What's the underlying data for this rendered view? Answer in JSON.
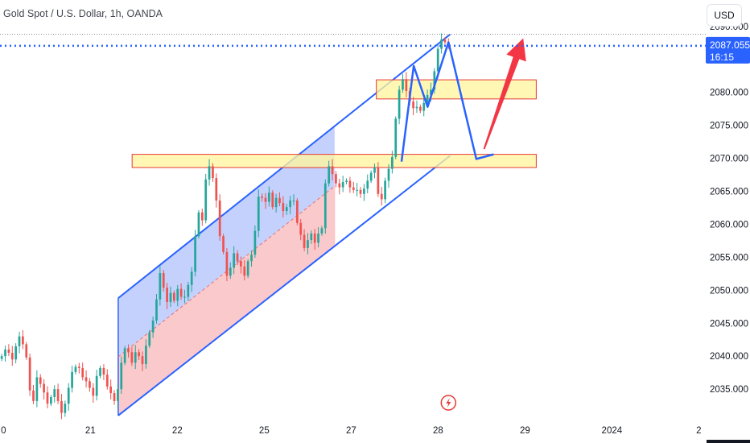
{
  "title": "Gold Spot / U.S. Dollar, 1h, OANDA",
  "currency": "USD",
  "price_tag": {
    "price": "2087.055",
    "countdown": "16:15"
  },
  "colors": {
    "up": "#26a69a",
    "down": "#ef5350",
    "channel_line": "#2962ff",
    "channel_upper_fill": "#b8c9fb",
    "channel_lower_fill": "#f9c3c6",
    "zone_fill": "#fff59d",
    "zone_border": "#e53935",
    "arrow_up": "#f23645",
    "price_tag_bg": "#2962ff",
    "event_icon": "#e53935"
  },
  "chart_data": {
    "type": "candlestick",
    "title": "Gold Spot / U.S. Dollar, 1h, OANDA",
    "y_ticks": [
      "2090.000",
      "2085.000",
      "2080.000",
      "2075.000",
      "2070.000",
      "2065.000",
      "2060.000",
      "2055.000",
      "2050.000",
      "2045.000",
      "2040.000",
      "2035.000"
    ],
    "y_tick_values": [
      2090,
      2085,
      2080,
      2075,
      2070,
      2065,
      2060,
      2055,
      2050,
      2045,
      2040,
      2035
    ],
    "x_ticks": [
      "0",
      "21",
      "22",
      "25",
      "27",
      "28",
      "29",
      "2024",
      "2"
    ],
    "x_tick_values": [
      0,
      1,
      2,
      3,
      4,
      5,
      6,
      7,
      8
    ],
    "ylim": [
      2030.5,
      2094.0
    ],
    "xlim": [
      -0.04,
      8.08
    ],
    "last_price": 2087.055,
    "candles_close_path": [
      2040.0,
      2041.0,
      2040.5,
      2039.5,
      2041.5,
      2043.0,
      2041.8,
      2039.8,
      2034.8,
      2033.2,
      2036.8,
      2035.8,
      2034.5,
      2032.8,
      2033.8,
      2035.0,
      2033.2,
      2031.4,
      2032.8,
      2035.2,
      2037.6,
      2038.4,
      2038.2,
      2036.8,
      2036.2,
      2035.2,
      2034.0,
      2037.0,
      2038.2,
      2037.2,
      2035.4,
      2034.4,
      2033.2,
      2035.0,
      2039.0,
      2041.2,
      2040.6,
      2039.0,
      2040.6,
      2040.0,
      2038.8,
      2041.6,
      2043.6,
      2045.4,
      2048.6,
      2052.6,
      2050.4,
      2048.2,
      2049.6,
      2048.4,
      2050.2,
      2049.0,
      2049.0,
      2050.8,
      2052.8,
      2058.2,
      2061.8,
      2060.6,
      2066.8,
      2068.8,
      2067.0,
      2063.6,
      2058.2,
      2055.8,
      2052.2,
      2053.4,
      2055.6,
      2054.4,
      2053.6,
      2052.2,
      2054.4,
      2055.4,
      2059.0,
      2064.2,
      2064.0,
      2063.4,
      2064.8,
      2062.6,
      2064.0,
      2063.2,
      2062.0,
      2062.6,
      2063.6,
      2063.6,
      2060.2,
      2058.4,
      2056.4,
      2057.6,
      2058.6,
      2057.2,
      2058.6,
      2059.4,
      2066.2,
      2068.8,
      2067.6,
      2066.2,
      2065.6,
      2066.4,
      2066.6,
      2065.6,
      2065.2,
      2065.2,
      2064.6,
      2065.4,
      2066.6,
      2067.8,
      2068.6,
      2064.6,
      2063.8,
      2066.6,
      2068.4,
      2070.2,
      2076.0,
      2080.4,
      2082.0,
      2080.2,
      2078.6,
      2077.6,
      2077.8,
      2077.2,
      2078.4,
      2079.6,
      2080.4,
      2083.2,
      2086.6,
      2088.0,
      2087.6,
      2087.4
    ],
    "annotations": {
      "channel": {
        "lower_line": [
          [
            1.32,
            2031.0
          ],
          [
            5.14,
            2070.4
          ]
        ],
        "upper_line": [
          [
            1.32,
            2048.8
          ],
          [
            5.14,
            2088.8
          ]
        ],
        "extends_to_x": 3.81
      },
      "zones": [
        {
          "x": [
            1.48,
            6.13
          ],
          "y": [
            2068.6,
            2070.6
          ]
        },
        {
          "x": [
            4.29,
            6.13
          ],
          "y": [
            2079.0,
            2081.9
          ]
        }
      ],
      "forecast_path": [
        [
          4.58,
          2069.5
        ],
        [
          4.72,
          2084.0
        ],
        [
          4.88,
          2077.8
        ],
        [
          5.12,
          2087.6
        ],
        [
          5.44,
          2069.9
        ],
        [
          5.64,
          2070.6
        ]
      ],
      "arrow": {
        "from": [
          5.53,
          2071.4
        ],
        "to": [
          5.98,
          2088.2
        ]
      }
    }
  }
}
